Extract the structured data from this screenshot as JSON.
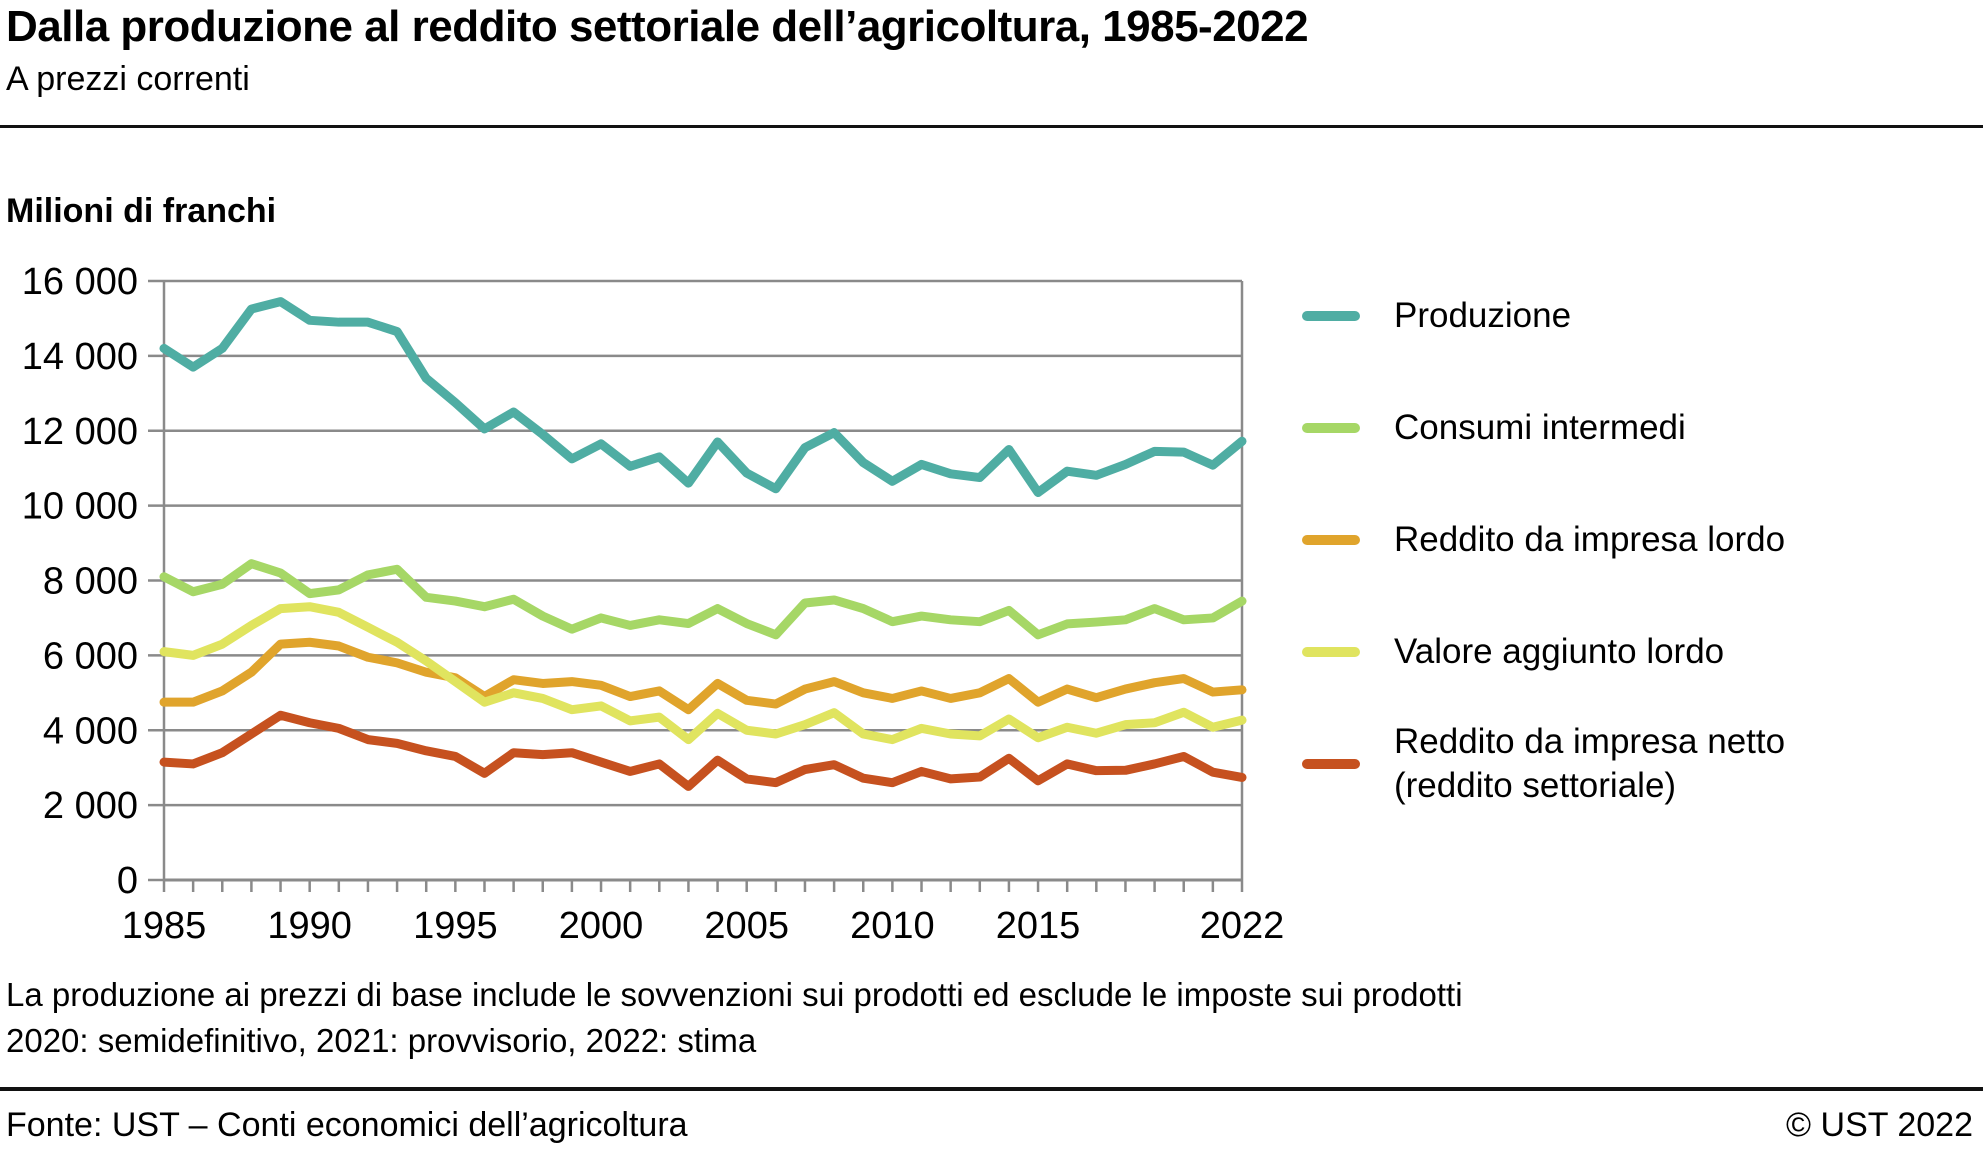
{
  "header": {
    "title": "Dalla produzione al reddito settoriale dell’agricoltura, 1985-2022",
    "subtitle": "A prezzi correnti"
  },
  "chart_data": {
    "type": "line",
    "unit_label": "Milioni di franchi",
    "grid": "horizontal",
    "legend_position": "right",
    "axis_color": "#8a8a8a",
    "ylim": [
      0,
      16000
    ],
    "y_ticks": [
      {
        "value": 0,
        "label": "0"
      },
      {
        "value": 2000,
        "label": "2 000"
      },
      {
        "value": 4000,
        "label": "4 000"
      },
      {
        "value": 6000,
        "label": "6 000"
      },
      {
        "value": 8000,
        "label": "8 000"
      },
      {
        "value": 10000,
        "label": "10 000"
      },
      {
        "value": 12000,
        "label": "12 000"
      },
      {
        "value": 14000,
        "label": "14 000"
      },
      {
        "value": 16000,
        "label": "16 000"
      }
    ],
    "x": [
      1985,
      1986,
      1987,
      1988,
      1989,
      1990,
      1991,
      1992,
      1993,
      1994,
      1995,
      1996,
      1997,
      1998,
      1999,
      2000,
      2001,
      2002,
      2003,
      2004,
      2005,
      2006,
      2007,
      2008,
      2009,
      2010,
      2011,
      2012,
      2013,
      2014,
      2015,
      2016,
      2017,
      2018,
      2019,
      2020,
      2021,
      2022
    ],
    "x_labeled_ticks": [
      {
        "value": 1985,
        "label": "1985"
      },
      {
        "value": 1990,
        "label": "1990"
      },
      {
        "value": 1995,
        "label": "1995"
      },
      {
        "value": 2000,
        "label": "2000"
      },
      {
        "value": 2005,
        "label": "2005"
      },
      {
        "value": 2010,
        "label": "2010"
      },
      {
        "value": 2015,
        "label": "2015"
      },
      {
        "value": 2022,
        "label": "2022"
      }
    ],
    "series": [
      {
        "name": "Produzione",
        "label_lines": [
          "Produzione"
        ],
        "color": "#4fada3",
        "values": [
          14200,
          13700,
          14200,
          15250,
          15450,
          14950,
          14900,
          14900,
          14650,
          13400,
          12750,
          12050,
          12500,
          11900,
          11250,
          11650,
          11050,
          11300,
          10600,
          11700,
          10870,
          10450,
          11550,
          11950,
          11150,
          10650,
          11100,
          10850,
          10750,
          11500,
          10350,
          10920,
          10810,
          11100,
          11450,
          11430,
          11080,
          11720
        ]
      },
      {
        "name": "Consumi intermedi",
        "label_lines": [
          "Consumi intermedi"
        ],
        "color": "#a6d766",
        "values": [
          8100,
          7700,
          7900,
          8450,
          8200,
          7650,
          7750,
          8150,
          8300,
          7550,
          7450,
          7300,
          7500,
          7050,
          6700,
          7000,
          6800,
          6950,
          6850,
          7250,
          6850,
          6550,
          7400,
          7480,
          7250,
          6900,
          7050,
          6950,
          6900,
          7200,
          6550,
          6840,
          6890,
          6950,
          7250,
          6950,
          7000,
          7450
        ]
      },
      {
        "name": "Reddito da impresa lordo",
        "label_lines": [
          "Reddito da impresa lordo"
        ],
        "color": "#e0a42c",
        "values": [
          4750,
          4750,
          5050,
          5550,
          6300,
          6350,
          6250,
          5950,
          5800,
          5550,
          5400,
          4900,
          5350,
          5250,
          5300,
          5200,
          4900,
          5050,
          4550,
          5250,
          4800,
          4700,
          5100,
          5300,
          5000,
          4850,
          5050,
          4850,
          5000,
          5380,
          4750,
          5100,
          4870,
          5100,
          5270,
          5380,
          5020,
          5080
        ]
      },
      {
        "name": "Valore aggiunto lordo",
        "label_lines": [
          "Valore aggiunto lordo"
        ],
        "color": "#e0e45f",
        "values": [
          6100,
          6000,
          6300,
          6800,
          7250,
          7300,
          7150,
          6750,
          6350,
          5850,
          5300,
          4750,
          5000,
          4850,
          4550,
          4650,
          4250,
          4350,
          3750,
          4450,
          4000,
          3900,
          4150,
          4470,
          3900,
          3750,
          4050,
          3900,
          3850,
          4300,
          3800,
          4080,
          3920,
          4150,
          4200,
          4480,
          4080,
          4270
        ]
      },
      {
        "name": "Reddito da impresa netto (reddito settoriale)",
        "label_lines": [
          "Reddito da impresa netto",
          "(reddito settoriale)"
        ],
        "color": "#c6511f",
        "values": [
          3150,
          3100,
          3400,
          3900,
          4400,
          4200,
          4050,
          3750,
          3650,
          3450,
          3300,
          2850,
          3400,
          3350,
          3400,
          3150,
          2900,
          3100,
          2500,
          3200,
          2700,
          2600,
          2950,
          3080,
          2720,
          2600,
          2900,
          2700,
          2750,
          3250,
          2650,
          3100,
          2920,
          2930,
          3100,
          3300,
          2880,
          2740
        ]
      }
    ]
  },
  "notes": {
    "line1": "La produzione ai prezzi di base include le sovvenzioni sui prodotti ed esclude le imposte sui prodotti",
    "line2": "2020: semidefinitivo, 2021: provvisorio, 2022: stima"
  },
  "footer": {
    "source": "Fonte: UST – Conti economici dell’agricoltura",
    "copyright": "© UST 2022"
  }
}
